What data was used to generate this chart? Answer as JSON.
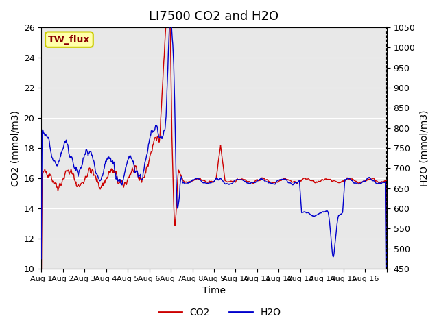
{
  "title": "LI7500 CO2 and H2O",
  "xlabel": "Time",
  "ylabel_left": "CO2 (mmol/m3)",
  "ylabel_right": "H2O (mmol/m3)",
  "ylim_left": [
    10,
    26
  ],
  "ylim_right": [
    450,
    1050
  ],
  "yticks_left": [
    10,
    12,
    14,
    16,
    18,
    20,
    22,
    24,
    26
  ],
  "yticks_right": [
    450,
    500,
    550,
    600,
    650,
    700,
    750,
    800,
    850,
    900,
    950,
    1000,
    1050
  ],
  "x_tick_positions": [
    0,
    1,
    2,
    3,
    4,
    5,
    6,
    7,
    8,
    9,
    10,
    11,
    12,
    13,
    14,
    15,
    16
  ],
  "x_labels": [
    "Aug 1",
    "Aug 2",
    "Aug 3",
    "Aug 4",
    "Aug 5",
    "Aug 6",
    "Aug 7",
    "Aug 8",
    "Aug 9",
    "Aug 10",
    "Aug 11",
    "Aug 12",
    "Aug 13",
    "Aug 14",
    "Aug 15",
    "Aug 16",
    ""
  ],
  "n_days": 16,
  "bg_color": "#e8e8e8",
  "co2_color": "#cc0000",
  "h2o_color": "#0000cc",
  "legend_co2": "CO2",
  "legend_h2o": "H2O",
  "watermark_text": "TW_flux",
  "watermark_color": "#8b0000",
  "watermark_bg": "#ffffaa",
  "watermark_border": "#cccc00",
  "title_fontsize": 13,
  "axis_label_fontsize": 10,
  "tick_fontsize": 9,
  "legend_fontsize": 10
}
